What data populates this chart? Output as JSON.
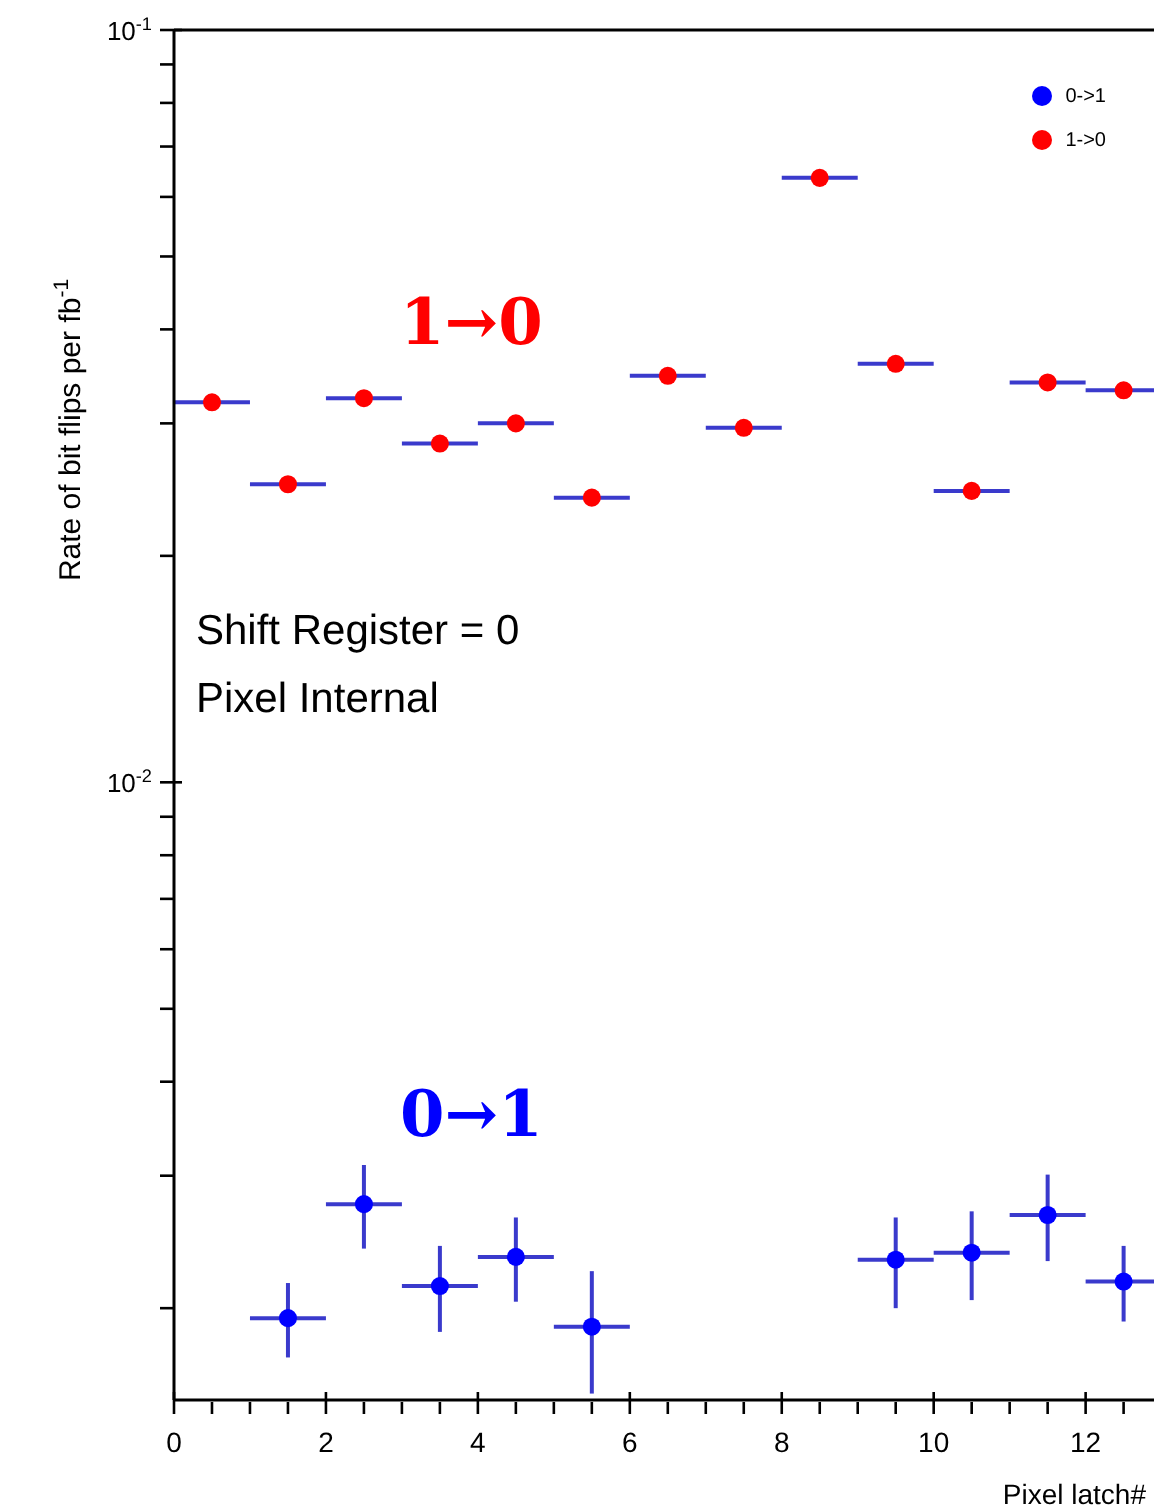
{
  "chart_data": {
    "type": "scatter",
    "xlabel": "Pixel latch#",
    "ylabel": "Rate of bit flips per fb$^{-1}$",
    "x": [
      0.5,
      1.5,
      2.5,
      3.5,
      4.5,
      5.5,
      6.5,
      7.5,
      8.5,
      9.5,
      10.5,
      11.5,
      12.5
    ],
    "series": [
      {
        "name": "0->1",
        "color": "#0000ff",
        "values": [
          null,
          0.00194,
          0.00275,
          0.00214,
          0.00234,
          0.00189,
          null,
          null,
          null,
          0.00232,
          0.00237,
          0.00266,
          0.00217
        ],
        "errors": [
          null,
          0.00022,
          0.00035,
          0.00028,
          0.0003,
          0.00035,
          null,
          null,
          null,
          0.00032,
          0.00032,
          0.00035,
          0.00025
        ],
        "xerrors": [
          null,
          0.5,
          0.5,
          0.5,
          0.5,
          0.5,
          null,
          null,
          null,
          0.5,
          0.5,
          0.5,
          0.5
        ]
      },
      {
        "name": "1->0",
        "color": "#ff0000",
        "values": [
          0.032,
          0.0249,
          0.0324,
          0.0282,
          0.03,
          0.0239,
          0.0347,
          0.0296,
          0.0636,
          0.036,
          0.0244,
          0.034,
          0.0332
        ],
        "xerrors": [
          0.5,
          0.5,
          0.5,
          0.5,
          0.5,
          0.5,
          0.5,
          0.5,
          0.5,
          0.5,
          0.5,
          0.5,
          0.5
        ]
      }
    ],
    "log": "y",
    "xlim": [
      0,
      12.9
    ],
    "ylim": [
      0.00151,
      0.1
    ],
    "xticks": [
      0,
      {
        "value": 0.5,
        "label": null
      },
      {
        "value": 1,
        "label": null
      },
      {
        "value": 1.5,
        "label": null
      },
      2,
      {
        "value": 2.5,
        "label": null
      },
      {
        "value": 3,
        "label": null
      },
      {
        "value": 3.5,
        "label": null
      },
      4,
      {
        "value": 4.5,
        "label": null
      },
      {
        "value": 5,
        "label": null
      },
      {
        "value": 5.5,
        "label": null
      },
      6,
      {
        "value": 6.5,
        "label": null
      },
      {
        "value": 7,
        "label": null
      },
      {
        "value": 7.5,
        "label": null
      },
      8,
      {
        "value": 8.5,
        "label": null
      },
      {
        "value": 9,
        "label": null
      },
      {
        "value": 9.5,
        "label": null
      },
      10,
      {
        "value": 10.5,
        "label": null
      },
      {
        "value": 11,
        "label": null
      },
      {
        "value": 11.5,
        "label": null
      },
      12,
      {
        "value": 12.5,
        "label": null
      }
    ],
    "yticks": [
      {
        "value": 0.002,
        "label": null
      },
      {
        "value": 0.003,
        "label": null
      },
      {
        "value": 0.004,
        "label": null
      },
      {
        "value": 0.005,
        "label": null
      },
      {
        "value": 0.006,
        "label": null
      },
      {
        "value": 0.007,
        "label": null
      },
      {
        "value": 0.008,
        "label": null
      },
      {
        "value": 0.009,
        "label": null
      },
      {
        "value": 0.01,
        "label": "10$^{-2}$"
      },
      {
        "value": 0.02,
        "label": null
      },
      {
        "value": 0.03,
        "label": null
      },
      {
        "value": 0.04,
        "label": null
      },
      {
        "value": 0.05,
        "label": null
      },
      {
        "value": 0.06,
        "label": null
      },
      {
        "value": 0.07,
        "label": null
      },
      {
        "value": 0.08,
        "label": null
      },
      {
        "value": 0.09,
        "label": null
      },
      {
        "value": 0.1,
        "label": "10$^{-1}$"
      }
    ],
    "marker": "circle",
    "grid": false,
    "legend": "top right",
    "annotations": [
      "1→0",
      "0→1",
      "Shift Register = 0",
      "Pixel Internal"
    ]
  }
}
